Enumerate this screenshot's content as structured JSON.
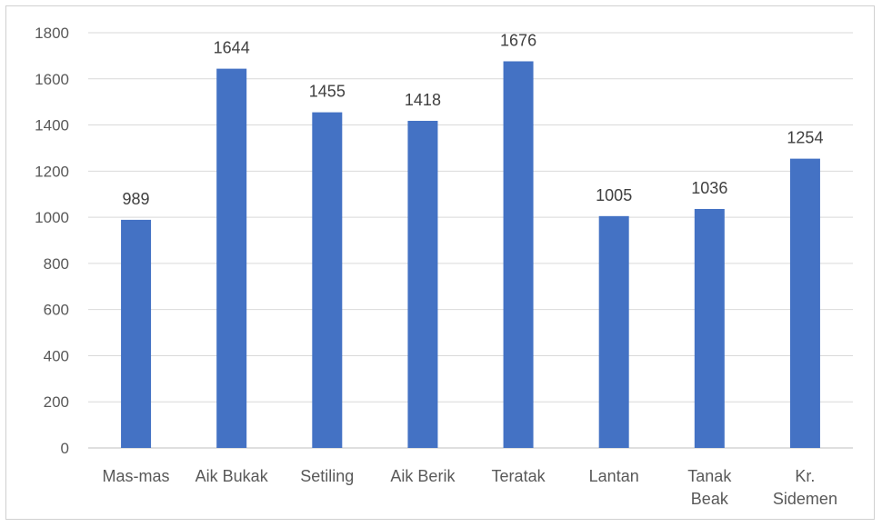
{
  "chart_data": {
    "type": "bar",
    "categories": [
      "Mas-mas",
      "Aik Bukak",
      "Setiling",
      "Aik Berik",
      "Teratak",
      "Lantan",
      "Tanak Beak",
      "Kr. Sidemen"
    ],
    "series": [
      {
        "values": [
          989,
          1644,
          1455,
          1418,
          1676,
          1005,
          1036,
          1254
        ],
        "color": "#4472c4"
      }
    ],
    "ylim": [
      0,
      1800
    ],
    "yticks": [
      0,
      200,
      400,
      600,
      800,
      1000,
      1200,
      1400,
      1600,
      1800
    ],
    "grid": true,
    "legend": "none",
    "data_labels": true,
    "title": "",
    "xlabel": "",
    "ylabel": ""
  }
}
